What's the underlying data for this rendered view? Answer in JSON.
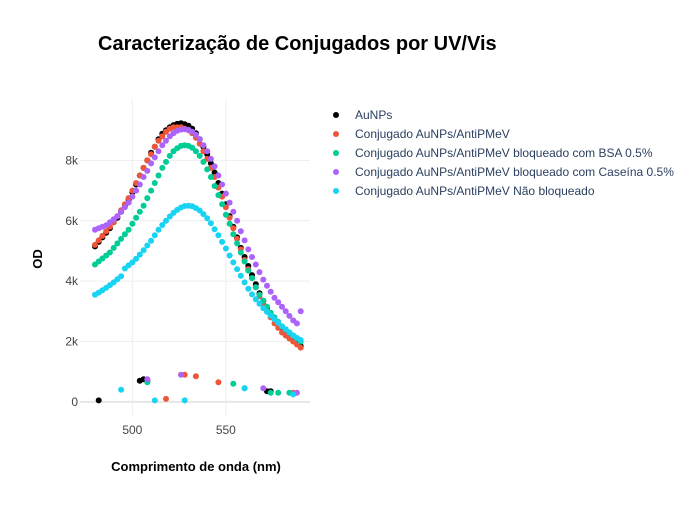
{
  "chart_data": {
    "type": "scatter",
    "title": "Caracterização de Conjugados por UV/Vis",
    "xlabel": "Comprimento de onda (nm)",
    "ylabel": "OD",
    "xlim": [
      472,
      595
    ],
    "ylim": [
      -500,
      10000
    ],
    "x_ticks": [
      500,
      550
    ],
    "x_tick_labels": [
      "500",
      "550"
    ],
    "y_ticks": [
      0,
      2000,
      4000,
      6000,
      8000
    ],
    "y_tick_labels": [
      "0",
      "2k",
      "4k",
      "6k",
      "8k"
    ],
    "grid": true,
    "legend_position": "right",
    "series": [
      {
        "name": "AuNPs",
        "color": "#000000",
        "points": [
          [
            480,
            5150
          ],
          [
            482,
            5300
          ],
          [
            484,
            5450
          ],
          [
            486,
            5600
          ],
          [
            488,
            5750
          ],
          [
            490,
            5950
          ],
          [
            492,
            6100
          ],
          [
            494,
            6300
          ],
          [
            496,
            6500
          ],
          [
            498,
            6700
          ],
          [
            500,
            6950
          ],
          [
            502,
            7200
          ],
          [
            504,
            7500
          ],
          [
            506,
            7750
          ],
          [
            508,
            8000
          ],
          [
            510,
            8250
          ],
          [
            512,
            8450
          ],
          [
            514,
            8700
          ],
          [
            516,
            8880
          ],
          [
            518,
            9000
          ],
          [
            520,
            9100
          ],
          [
            522,
            9170
          ],
          [
            524,
            9210
          ],
          [
            526,
            9230
          ],
          [
            528,
            9200
          ],
          [
            530,
            9150
          ],
          [
            532,
            9050
          ],
          [
            534,
            8900
          ],
          [
            536,
            8700
          ],
          [
            538,
            8450
          ],
          [
            540,
            8200
          ],
          [
            542,
            7900
          ],
          [
            544,
            7600
          ],
          [
            546,
            7250
          ],
          [
            548,
            6900
          ],
          [
            550,
            6550
          ],
          [
            552,
            6150
          ],
          [
            554,
            5800
          ],
          [
            556,
            5450
          ],
          [
            558,
            5100
          ],
          [
            560,
            4800
          ],
          [
            562,
            4500
          ],
          [
            564,
            4200
          ],
          [
            566,
            3900
          ],
          [
            568,
            3600
          ],
          [
            570,
            3350
          ],
          [
            572,
            3100
          ],
          [
            574,
            2900
          ],
          [
            576,
            2750
          ],
          [
            578,
            2600
          ],
          [
            580,
            2450
          ],
          [
            582,
            2300
          ],
          [
            584,
            2150
          ],
          [
            586,
            2050
          ],
          [
            588,
            1950
          ],
          [
            590,
            1850
          ],
          [
            482,
            50
          ],
          [
            504,
            700
          ],
          [
            506,
            750
          ],
          [
            508,
            700
          ],
          [
            572,
            350
          ],
          [
            574,
            350
          ]
        ]
      },
      {
        "name": "Conjugado AuNPs/AntiPMeV",
        "color": "#EF553B",
        "points": [
          [
            480,
            5200
          ],
          [
            482,
            5350
          ],
          [
            484,
            5500
          ],
          [
            486,
            5650
          ],
          [
            488,
            5800
          ],
          [
            490,
            5950
          ],
          [
            492,
            6150
          ],
          [
            494,
            6350
          ],
          [
            496,
            6550
          ],
          [
            498,
            6750
          ],
          [
            500,
            7000
          ],
          [
            502,
            7250
          ],
          [
            504,
            7500
          ],
          [
            506,
            7750
          ],
          [
            508,
            8000
          ],
          [
            510,
            8200
          ],
          [
            512,
            8450
          ],
          [
            514,
            8650
          ],
          [
            516,
            8800
          ],
          [
            518,
            8950
          ],
          [
            520,
            9050
          ],
          [
            522,
            9100
          ],
          [
            524,
            9100
          ],
          [
            526,
            9100
          ],
          [
            528,
            9050
          ],
          [
            530,
            9000
          ],
          [
            532,
            8900
          ],
          [
            534,
            8750
          ],
          [
            536,
            8550
          ],
          [
            538,
            8300
          ],
          [
            540,
            8050
          ],
          [
            542,
            7750
          ],
          [
            544,
            7450
          ],
          [
            546,
            7100
          ],
          [
            548,
            6800
          ],
          [
            550,
            6450
          ],
          [
            552,
            6100
          ],
          [
            554,
            5750
          ],
          [
            556,
            5400
          ],
          [
            558,
            5050
          ],
          [
            560,
            4700
          ],
          [
            562,
            4400
          ],
          [
            564,
            4100
          ],
          [
            566,
            3800
          ],
          [
            568,
            3500
          ],
          [
            570,
            3250
          ],
          [
            572,
            3000
          ],
          [
            574,
            2800
          ],
          [
            576,
            2600
          ],
          [
            578,
            2450
          ],
          [
            580,
            2300
          ],
          [
            582,
            2200
          ],
          [
            584,
            2100
          ],
          [
            586,
            2000
          ],
          [
            588,
            1900
          ],
          [
            590,
            1800
          ],
          [
            518,
            100
          ],
          [
            528,
            900
          ],
          [
            534,
            850
          ],
          [
            546,
            650
          ],
          [
            586,
            300
          ]
        ]
      },
      {
        "name": "Conjugado AuNPs/AntiPMeV bloqueado com BSA 0.5%",
        "color": "#00CC96",
        "points": [
          [
            480,
            4550
          ],
          [
            482,
            4650
          ],
          [
            484,
            4750
          ],
          [
            486,
            4850
          ],
          [
            488,
            4950
          ],
          [
            490,
            5100
          ],
          [
            492,
            5250
          ],
          [
            494,
            5400
          ],
          [
            496,
            5550
          ],
          [
            498,
            5700
          ],
          [
            500,
            5900
          ],
          [
            502,
            6100
          ],
          [
            504,
            6300
          ],
          [
            506,
            6500
          ],
          [
            508,
            6750
          ],
          [
            510,
            7000
          ],
          [
            512,
            7250
          ],
          [
            514,
            7500
          ],
          [
            516,
            7750
          ],
          [
            518,
            7950
          ],
          [
            520,
            8150
          ],
          [
            522,
            8300
          ],
          [
            524,
            8400
          ],
          [
            526,
            8480
          ],
          [
            528,
            8500
          ],
          [
            530,
            8480
          ],
          [
            532,
            8420
          ],
          [
            534,
            8300
          ],
          [
            536,
            8150
          ],
          [
            538,
            7950
          ],
          [
            540,
            7700
          ],
          [
            542,
            7450
          ],
          [
            544,
            7150
          ],
          [
            546,
            6850
          ],
          [
            548,
            6550
          ],
          [
            550,
            6200
          ],
          [
            552,
            5900
          ],
          [
            554,
            5550
          ],
          [
            556,
            5250
          ],
          [
            558,
            4950
          ],
          [
            560,
            4650
          ],
          [
            562,
            4350
          ],
          [
            564,
            4100
          ],
          [
            566,
            3800
          ],
          [
            568,
            3550
          ],
          [
            570,
            3350
          ],
          [
            572,
            3150
          ],
          [
            574,
            2950
          ],
          [
            576,
            2800
          ],
          [
            578,
            2650
          ],
          [
            580,
            2500
          ],
          [
            582,
            2400
          ],
          [
            584,
            2300
          ],
          [
            586,
            2200
          ],
          [
            588,
            2100
          ],
          [
            590,
            2000
          ],
          [
            508,
            650
          ],
          [
            554,
            600
          ],
          [
            560,
            450
          ],
          [
            574,
            300
          ],
          [
            578,
            300
          ],
          [
            584,
            300
          ]
        ]
      },
      {
        "name": "Conjugado AuNPs/AntiPMeV bloqueado com Caseína 0.5%",
        "color": "#AB63FA",
        "points": [
          [
            480,
            5700
          ],
          [
            482,
            5750
          ],
          [
            484,
            5800
          ],
          [
            486,
            5850
          ],
          [
            488,
            5950
          ],
          [
            490,
            6050
          ],
          [
            492,
            6150
          ],
          [
            494,
            6300
          ],
          [
            496,
            6450
          ],
          [
            498,
            6600
          ],
          [
            500,
            6800
          ],
          [
            502,
            7000
          ],
          [
            504,
            7200
          ],
          [
            506,
            7450
          ],
          [
            508,
            7650
          ],
          [
            510,
            7900
          ],
          [
            512,
            8100
          ],
          [
            514,
            8300
          ],
          [
            516,
            8500
          ],
          [
            518,
            8650
          ],
          [
            520,
            8800
          ],
          [
            522,
            8900
          ],
          [
            524,
            8980
          ],
          [
            526,
            9020
          ],
          [
            528,
            9030
          ],
          [
            530,
            9010
          ],
          [
            532,
            8950
          ],
          [
            534,
            8850
          ],
          [
            536,
            8700
          ],
          [
            538,
            8500
          ],
          [
            540,
            8300
          ],
          [
            542,
            8050
          ],
          [
            544,
            7800
          ],
          [
            546,
            7500
          ],
          [
            548,
            7200
          ],
          [
            550,
            6900
          ],
          [
            552,
            6600
          ],
          [
            554,
            6300
          ],
          [
            556,
            6000
          ],
          [
            558,
            5650
          ],
          [
            560,
            5350
          ],
          [
            562,
            5050
          ],
          [
            564,
            4800
          ],
          [
            566,
            4550
          ],
          [
            568,
            4300
          ],
          [
            570,
            4050
          ],
          [
            572,
            3850
          ],
          [
            574,
            3650
          ],
          [
            576,
            3450
          ],
          [
            578,
            3300
          ],
          [
            580,
            3150
          ],
          [
            582,
            3000
          ],
          [
            584,
            2850
          ],
          [
            586,
            2700
          ],
          [
            588,
            2600
          ],
          [
            590,
            3000
          ],
          [
            508,
            750
          ],
          [
            526,
            900
          ],
          [
            570,
            450
          ],
          [
            588,
            300
          ]
        ]
      },
      {
        "name": "Conjugado AuNPs/AntiPMeV Não bloqueado",
        "color": "#19D3F3",
        "points": [
          [
            480,
            3550
          ],
          [
            482,
            3620
          ],
          [
            484,
            3700
          ],
          [
            486,
            3780
          ],
          [
            488,
            3870
          ],
          [
            490,
            3960
          ],
          [
            492,
            4060
          ],
          [
            494,
            4160
          ],
          [
            496,
            4420
          ],
          [
            498,
            4520
          ],
          [
            500,
            4620
          ],
          [
            502,
            4740
          ],
          [
            504,
            4880
          ],
          [
            506,
            5020
          ],
          [
            508,
            5180
          ],
          [
            510,
            5340
          ],
          [
            512,
            5520
          ],
          [
            514,
            5700
          ],
          [
            516,
            5860
          ],
          [
            518,
            6000
          ],
          [
            520,
            6140
          ],
          [
            522,
            6260
          ],
          [
            524,
            6360
          ],
          [
            526,
            6440
          ],
          [
            528,
            6490
          ],
          [
            530,
            6500
          ],
          [
            532,
            6480
          ],
          [
            534,
            6420
          ],
          [
            536,
            6340
          ],
          [
            538,
            6220
          ],
          [
            540,
            6080
          ],
          [
            542,
            5920
          ],
          [
            544,
            5720
          ],
          [
            546,
            5520
          ],
          [
            548,
            5300
          ],
          [
            550,
            5080
          ],
          [
            552,
            4850
          ],
          [
            554,
            4620
          ],
          [
            556,
            4400
          ],
          [
            558,
            4180
          ],
          [
            560,
            3960
          ],
          [
            562,
            3750
          ],
          [
            564,
            3560
          ],
          [
            566,
            3400
          ],
          [
            568,
            3250
          ],
          [
            570,
            3100
          ],
          [
            572,
            2980
          ],
          [
            574,
            2860
          ],
          [
            576,
            2740
          ],
          [
            578,
            2620
          ],
          [
            580,
            2500
          ],
          [
            582,
            2400
          ],
          [
            584,
            2300
          ],
          [
            586,
            2200
          ],
          [
            588,
            2120
          ],
          [
            590,
            2050
          ],
          [
            494,
            400
          ],
          [
            512,
            50
          ],
          [
            528,
            50
          ],
          [
            560,
            450
          ],
          [
            586,
            250
          ]
        ]
      }
    ]
  }
}
